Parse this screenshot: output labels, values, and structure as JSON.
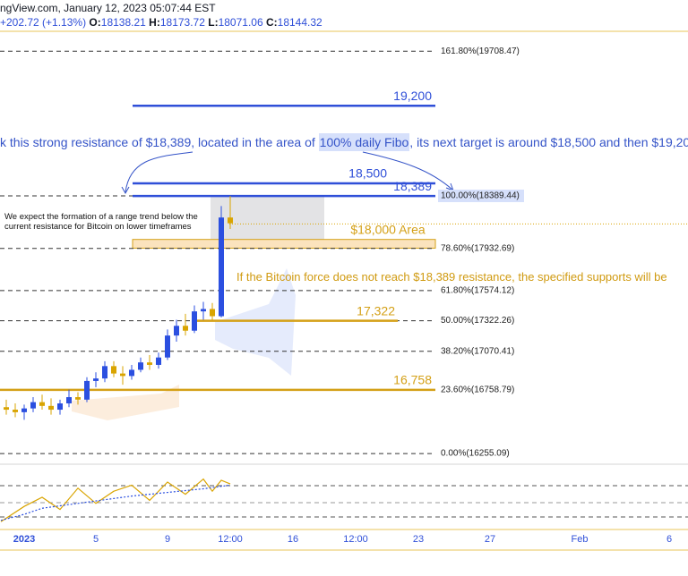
{
  "header": {
    "source": "ngView.com, January 12, 2023 05:07:44 EST",
    "change": "+202.72 (+1.13%)",
    "ohlc": [
      {
        "label": "O:",
        "value": "18138.21"
      },
      {
        "label": "H:",
        "value": "18173.72"
      },
      {
        "label": "L:",
        "value": "18071.06"
      },
      {
        "label": "C:",
        "value": "18144.32"
      }
    ]
  },
  "chart_data": {
    "type": "candlestick",
    "log_scale": true,
    "x": [
      -1,
      -0.5,
      0,
      0.5,
      1,
      1.5,
      2,
      2.5,
      3,
      3.5,
      4,
      4.5,
      5,
      5.5,
      6,
      6.5,
      7,
      7.5,
      8,
      8.5,
      9,
      9.5,
      10,
      10.5,
      11,
      11.5
    ],
    "open": [
      16620,
      16600,
      16580,
      16610,
      16660,
      16630,
      16600,
      16650,
      16700,
      16680,
      16830,
      16850,
      16950,
      16890,
      16870,
      16920,
      16980,
      16960,
      17020,
      17200,
      17280,
      17240,
      17400,
      17420,
      17360,
      18200
    ],
    "high": [
      16680,
      16650,
      16640,
      16700,
      16720,
      16690,
      16680,
      16760,
      16740,
      16860,
      16900,
      16990,
      16990,
      16950,
      16960,
      17020,
      17040,
      17060,
      17250,
      17330,
      17380,
      17450,
      17480,
      17470,
      18300,
      18389
    ],
    "low": [
      16560,
      16540,
      16520,
      16580,
      16600,
      16560,
      16560,
      16620,
      16640,
      16660,
      16780,
      16820,
      16860,
      16800,
      16840,
      16900,
      16920,
      16930,
      17000,
      17150,
      17200,
      17220,
      17330,
      17330,
      17350,
      18100
    ],
    "close": [
      16600,
      16580,
      16610,
      16660,
      16630,
      16600,
      16650,
      16700,
      16680,
      16830,
      16850,
      16950,
      16890,
      16870,
      16920,
      16980,
      16960,
      17020,
      17200,
      17280,
      17240,
      17400,
      17420,
      17360,
      18200,
      18150
    ],
    "up_color": "#2b4fe0",
    "down_color": "#d9a400",
    "xlim": [
      -1.35,
      37.05
    ],
    "xticks": [
      {
        "value": 0,
        "label": "2023"
      },
      {
        "value": 4,
        "label": "5"
      },
      {
        "value": 8,
        "label": "9"
      },
      {
        "value": 11.5,
        "label": "12:00"
      },
      {
        "value": 15,
        "label": "16"
      },
      {
        "value": 18.5,
        "label": "12:00"
      },
      {
        "value": 22,
        "label": "23"
      },
      {
        "value": 26,
        "label": "27"
      },
      {
        "value": 31,
        "label": "Feb"
      },
      {
        "value": 36,
        "label": "6"
      }
    ],
    "ylim": [
      16200,
      19940
    ],
    "current_price": 18144.32,
    "fib_levels": [
      {
        "value": 19708.47,
        "label": "161.80%(19708.47)"
      },
      {
        "value": 18389.44,
        "label": "100.00%(18389.44)"
      },
      {
        "value": 17932.69,
        "label": "78.60%(17932.69)"
      },
      {
        "value": 17574.12,
        "label": "61.80%(17574.12)"
      },
      {
        "value": 17322.26,
        "label": "50.00%(17322.26)"
      },
      {
        "value": 17070.41,
        "label": "38.20%(17070.41)"
      },
      {
        "value": 16758.79,
        "label": "23.60%(16758.79)"
      },
      {
        "value": 16255.09,
        "label": "0.00%(16255.09)"
      }
    ],
    "level_lines": [
      {
        "value": 19200,
        "label": "19,200",
        "color": "#2f4fd8"
      },
      {
        "value": 18500,
        "label": "18,500",
        "color": "#2f4fd8"
      },
      {
        "value": 18389,
        "label": "18,389",
        "color": "#2f4fd8"
      },
      {
        "value": 17322,
        "label": "17,322",
        "color": "#d4a017"
      },
      {
        "value": 16758,
        "label": "16,758",
        "color": "#d4a017"
      }
    ],
    "zone": {
      "label": "$18,000 Area",
      "range": [
        17935,
        18010
      ]
    },
    "annotations": {
      "main": [
        "k this strong resistance of $18,389, located in the area of ",
        "100% daily Fibo",
        ", its next target is around $18,500 and then $19,200."
      ],
      "note": "We expect the formation of a range trend below the current resistance for Bitcoin on lower timeframes",
      "warning": "If the Bitcoin force does not reach $18,389 resistance, the specified supports will be"
    },
    "indicator": {
      "ylim": [
        0,
        100
      ],
      "x": [
        -1.3,
        0,
        1,
        2,
        3,
        4,
        5,
        6,
        7,
        8,
        9,
        10,
        10.5,
        11,
        11.5
      ],
      "values": [
        10,
        35,
        50,
        30,
        65,
        40,
        60,
        70,
        45,
        75,
        55,
        80,
        60,
        78,
        72
      ],
      "signal": [
        12,
        22,
        32,
        36,
        40,
        44,
        48,
        52,
        55,
        58,
        61,
        64,
        66,
        68,
        70
      ]
    }
  }
}
